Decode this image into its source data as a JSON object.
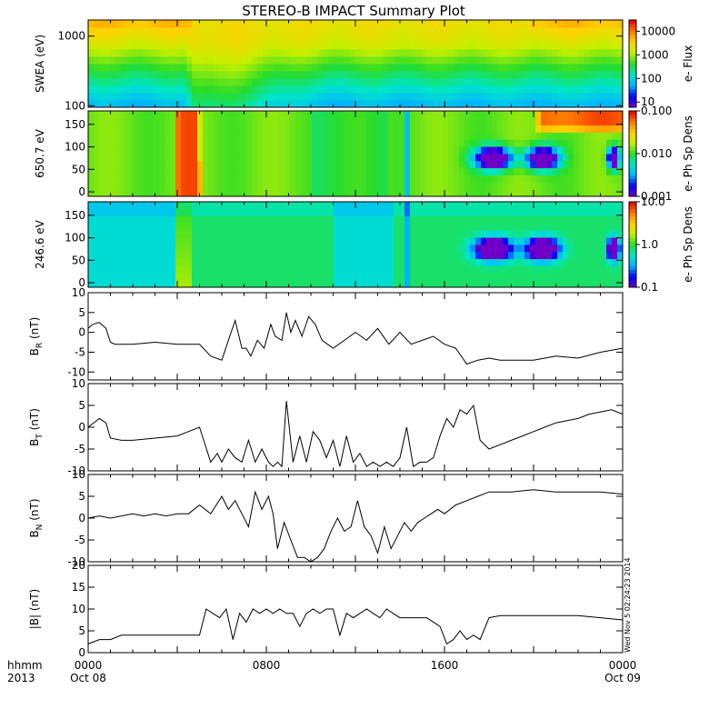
{
  "title": "STEREO-B IMPACT Summary Plot",
  "stamp": "Wed Nov  5 02:24:23 2014",
  "x_axis": {
    "row1_label": "hhmm",
    "row2_label": "2013",
    "ticks": [
      {
        "t": 0,
        "time": "0000",
        "date": "Oct 08"
      },
      {
        "t": 8,
        "time": "0800",
        "date": ""
      },
      {
        "t": 16,
        "time": "1600",
        "date": ""
      },
      {
        "t": 24,
        "time": "0000",
        "date": "Oct 09"
      }
    ]
  },
  "colors": {
    "spectrogram_scale": [
      "#7000c8",
      "#0000ff",
      "#00b4ff",
      "#00e6c8",
      "#28dc28",
      "#c8f000",
      "#ffd200",
      "#ff7800",
      "#e60000"
    ],
    "line": "#000000"
  },
  "chart_data": [
    {
      "type": "heatmap",
      "name": "swea",
      "ylabel": "SWEA (eV)",
      "yscale": "log",
      "ylim": [
        95,
        1700
      ],
      "yticks": [
        {
          "v": 100,
          "label": "100"
        },
        {
          "v": 1000,
          "label": "1000"
        }
      ],
      "colorbar": {
        "label": "e- Flux",
        "scale": "log",
        "range": [
          6,
          30000
        ],
        "ticks": [
          {
            "v": 10,
            "label": "10"
          },
          {
            "v": 100,
            "label": "100"
          },
          {
            "v": 1000,
            "label": "1000"
          },
          {
            "v": 10000,
            "label": "10000"
          }
        ]
      }
    },
    {
      "type": "heatmap",
      "name": "pad650",
      "ylabel": "650.7 eV",
      "ylim": [
        -10,
        180
      ],
      "yticks": [
        {
          "v": 0,
          "label": "0"
        },
        {
          "v": 50,
          "label": "50"
        },
        {
          "v": 100,
          "label": "100"
        },
        {
          "v": 150,
          "label": "150"
        }
      ],
      "colorbar": {
        "label": "e- Ph Sp Dens",
        "scale": "log",
        "range": [
          0.001,
          0.1
        ],
        "ticks": [
          {
            "v": 0.001,
            "label": "0.001"
          },
          {
            "v": 0.01,
            "label": "0.010"
          },
          {
            "v": 0.1,
            "label": "0.100"
          }
        ]
      }
    },
    {
      "type": "heatmap",
      "name": "pad246",
      "ylabel": "246.6 eV",
      "ylim": [
        -10,
        180
      ],
      "yticks": [
        {
          "v": 0,
          "label": "0"
        },
        {
          "v": 50,
          "label": "50"
        },
        {
          "v": 100,
          "label": "100"
        },
        {
          "v": 150,
          "label": "150"
        }
      ],
      "colorbar": {
        "label": "e- Ph Sp Dens",
        "scale": "log",
        "range": [
          0.1,
          10
        ],
        "ticks": [
          {
            "v": 0.1,
            "label": "0.1"
          },
          {
            "v": 1,
            "label": "1.0"
          },
          {
            "v": 10,
            "label": "10.0"
          }
        ]
      }
    },
    {
      "type": "line",
      "name": "br",
      "ylabel": "BR (nT)",
      "ylim": [
        -12,
        10
      ],
      "yticks": [
        -10,
        -5,
        0,
        5,
        10
      ],
      "x": [
        0,
        0.2,
        0.5,
        0.8,
        1.0,
        1.2,
        1.5,
        2,
        3,
        4,
        5,
        5.5,
        6,
        6.3,
        6.6,
        6.9,
        7.1,
        7.3,
        7.6,
        7.9,
        8.2,
        8.4,
        8.7,
        8.9,
        9.1,
        9.3,
        9.6,
        9.9,
        10.2,
        10.5,
        11,
        11.5,
        12,
        12.5,
        13,
        13.5,
        14,
        14.5,
        15,
        15.5,
        16,
        16.5,
        17,
        17.5,
        18,
        18.5,
        19,
        20,
        21,
        22,
        23,
        24
      ],
      "y": [
        1,
        2,
        2.5,
        1,
        -2.5,
        -3,
        -3,
        -3,
        -2.5,
        -3,
        -3,
        -6,
        -7,
        -2,
        3,
        -4,
        -4,
        -6,
        -2,
        -4,
        2,
        -1,
        -2,
        5,
        0,
        3,
        -1,
        4,
        2,
        -2,
        -4,
        -2,
        0,
        -2,
        1,
        -3,
        0,
        -3,
        -2,
        -1,
        -3,
        -4,
        -8,
        -7,
        -6.5,
        -7,
        -7,
        -7,
        -6,
        -6.5,
        -5,
        -4
      ]
    },
    {
      "type": "line",
      "name": "bt",
      "ylabel": "BT (nT)",
      "ylim": [
        -10,
        10
      ],
      "yticks": [
        -10,
        -5,
        0,
        5,
        10
      ],
      "x": [
        0,
        0.5,
        0.8,
        1.0,
        1.5,
        2,
        3,
        4,
        4.5,
        5,
        5.5,
        5.8,
        6,
        6.3,
        6.6,
        6.9,
        7.2,
        7.5,
        7.8,
        8.1,
        8.3,
        8.5,
        8.7,
        8.9,
        9.2,
        9.5,
        9.8,
        10.1,
        10.4,
        10.7,
        11,
        11.3,
        11.6,
        11.9,
        12.2,
        12.5,
        12.8,
        13.1,
        13.4,
        13.7,
        14,
        14.3,
        14.6,
        14.9,
        15.2,
        15.5,
        15.8,
        16.1,
        16.4,
        16.7,
        17,
        17.3,
        17.6,
        18,
        18.5,
        19,
        19.5,
        20,
        20.5,
        21,
        21.5,
        22,
        22.5,
        23,
        23.5,
        24
      ],
      "y": [
        0,
        2,
        1,
        -2.5,
        -3,
        -3,
        -2.5,
        -2,
        -1,
        0,
        -8,
        -6,
        -8,
        -5,
        -7,
        -8,
        -3,
        -8,
        -5,
        -8,
        -9,
        -8,
        -9,
        6,
        -8,
        -2,
        -8,
        -1,
        -3,
        -7,
        -3,
        -9,
        -2,
        -8,
        -6,
        -9,
        -8,
        -9,
        -8,
        -9,
        -7,
        0,
        -9,
        -8,
        -8,
        -7,
        -2,
        2,
        0,
        4,
        3,
        5,
        -3,
        -5,
        -4,
        -3,
        -2,
        -1,
        0,
        1,
        1.5,
        2,
        3,
        3.5,
        4,
        3
      ]
    },
    {
      "type": "line",
      "name": "bn",
      "ylabel": "BN (nT)",
      "ylim": [
        -10,
        10
      ],
      "yticks": [
        -10,
        -5,
        0,
        5,
        10
      ],
      "x": [
        0,
        0.5,
        1,
        1.5,
        2,
        2.5,
        3,
        3.5,
        4,
        4.5,
        5,
        5.5,
        6,
        6.3,
        6.6,
        6.9,
        7.2,
        7.5,
        7.8,
        8.1,
        8.3,
        8.5,
        8.8,
        9.1,
        9.4,
        9.7,
        10,
        10.3,
        10.6,
        10.9,
        11.2,
        11.5,
        11.8,
        12.1,
        12.4,
        12.7,
        13,
        13.3,
        13.6,
        13.9,
        14.2,
        14.5,
        14.8,
        15.1,
        15.4,
        15.7,
        16,
        16.5,
        17,
        17.5,
        18,
        19,
        20,
        21,
        22,
        23,
        24
      ],
      "y": [
        0,
        0.5,
        0,
        0.5,
        1,
        0.5,
        1,
        0.5,
        1,
        1,
        3,
        1,
        5,
        2,
        4,
        1,
        -2,
        6,
        2,
        5,
        1,
        -7,
        -1,
        -5,
        -9,
        -9,
        -10,
        -9,
        -7,
        -3,
        0,
        -3,
        -2,
        4,
        -2,
        -4,
        -8,
        -2,
        -7,
        -4,
        -1,
        -3,
        -1,
        0,
        1,
        2,
        1,
        3,
        4,
        5,
        6,
        6,
        6.5,
        6,
        6,
        6,
        5.5
      ]
    },
    {
      "type": "line",
      "name": "bmag",
      "ylabel": "|B| (nT)",
      "ylim": [
        0,
        20
      ],
      "yticks": [
        0,
        5,
        10,
        15,
        20
      ],
      "x": [
        0,
        0.5,
        1,
        1.5,
        2,
        3,
        4,
        5,
        5.3,
        5.6,
        5.9,
        6.2,
        6.5,
        6.8,
        7.1,
        7.4,
        7.7,
        8,
        8.3,
        8.6,
        8.9,
        9.2,
        9.5,
        9.8,
        10.1,
        10.4,
        10.7,
        11,
        11.3,
        11.6,
        11.9,
        12.2,
        12.5,
        12.8,
        13.1,
        13.4,
        13.7,
        14,
        14.3,
        14.6,
        14.9,
        15.2,
        15.5,
        15.8,
        16.1,
        16.4,
        16.7,
        17,
        17.3,
        17.6,
        18,
        18.5,
        19,
        20,
        21,
        22,
        23,
        24
      ],
      "y": [
        2,
        3,
        3,
        4,
        4,
        4,
        4,
        4,
        10,
        9,
        8,
        10,
        3,
        9,
        7,
        10,
        9,
        10,
        9,
        10,
        9,
        9,
        6,
        9,
        10,
        9,
        10,
        10,
        4,
        9,
        8,
        9,
        10,
        9,
        8,
        10,
        9,
        8,
        8,
        8,
        8,
        8,
        7,
        6,
        2,
        3,
        5,
        3,
        4,
        3,
        8,
        8.5,
        8.5,
        8.5,
        8.5,
        8.5,
        8,
        7.5
      ]
    }
  ]
}
